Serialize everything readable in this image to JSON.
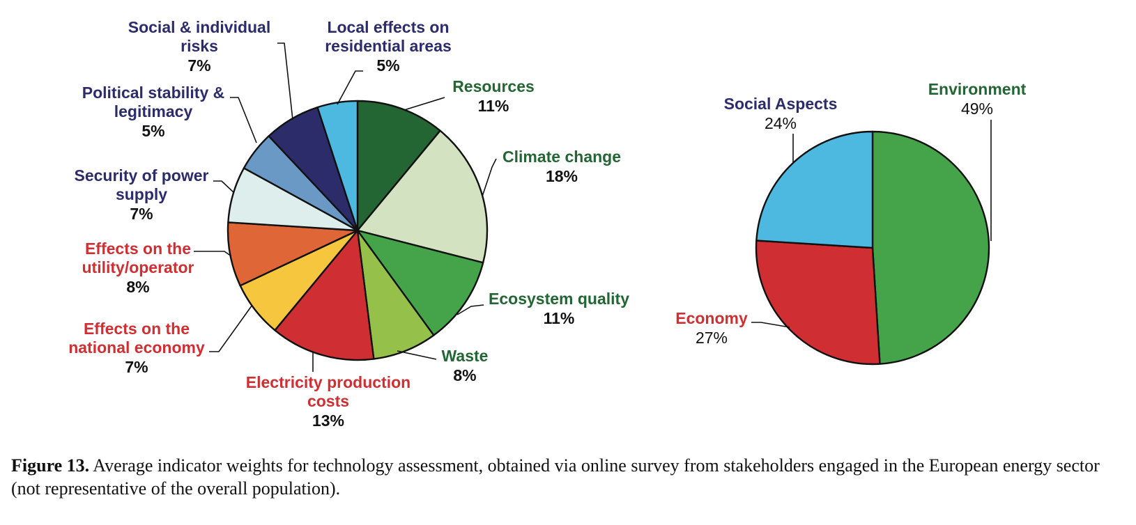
{
  "chart_data": [
    {
      "type": "pie",
      "title": "",
      "slices": [
        {
          "label": "Resources",
          "value": 11,
          "value_label": "11%",
          "color": "#236634",
          "label_color": "#236634"
        },
        {
          "label": "Climate change",
          "value": 18,
          "value_label": "18%",
          "color": "#d3e3c1",
          "label_color": "#236634"
        },
        {
          "label": "Ecosystem quality",
          "value": 11,
          "value_label": "11%",
          "color": "#45a449",
          "label_color": "#236634"
        },
        {
          "label": "Waste",
          "value": 8,
          "value_label": "8%",
          "color": "#95c049",
          "label_color": "#236634"
        },
        {
          "label": "Electricity production costs",
          "value": 13,
          "value_label": "13%",
          "color": "#cf2f33",
          "label_color": "#cf2f33"
        },
        {
          "label": "Effects on the national economy",
          "value": 7,
          "value_label": "7%",
          "color": "#f6c73e",
          "label_color": "#cf2f33"
        },
        {
          "label": "Effects on the utility/operator",
          "value": 8,
          "value_label": "8%",
          "color": "#df6637",
          "label_color": "#cf2f33"
        },
        {
          "label": "Security of power supply",
          "value": 7,
          "value_label": "7%",
          "color": "#ddeeec",
          "label_color": "#2d2c6b"
        },
        {
          "label": "Political stability & legitimacy",
          "value": 5,
          "value_label": "5%",
          "color": "#6b99c6",
          "label_color": "#2d2c6b"
        },
        {
          "label": "Social & individual risks",
          "value": 7,
          "value_label": "7%",
          "color": "#2d2c6b",
          "label_color": "#2d2c6b"
        },
        {
          "label": "Local effects on residential areas",
          "value": 5,
          "value_label": "5%",
          "color": "#4db8e0",
          "label_color": "#2d2c6b"
        }
      ],
      "label_lines": [
        [
          "Resources"
        ],
        [
          "Climate change"
        ],
        [
          "Ecosystem quality"
        ],
        [
          "Waste"
        ],
        [
          "Electricity production",
          "costs"
        ],
        [
          "Effects on the",
          "national economy"
        ],
        [
          "Effects on the",
          "utility/operator"
        ],
        [
          "Security of power",
          "supply"
        ],
        [
          "Political stability &",
          "legitimacy"
        ],
        [
          "Social & individual",
          "risks"
        ],
        [
          "Local effects on",
          "residential areas"
        ]
      ]
    },
    {
      "type": "pie",
      "title": "",
      "slices": [
        {
          "label": "Environment",
          "value": 49,
          "value_label": "49%",
          "color": "#45a449",
          "label_color": "#236634"
        },
        {
          "label": "Economy",
          "value": 27,
          "value_label": "27%",
          "color": "#cf2f33",
          "label_color": "#cf2f33"
        },
        {
          "label": "Social Aspects",
          "value": 24,
          "value_label": "24%",
          "color": "#4db8e0",
          "label_color": "#2d2c6b"
        }
      ]
    }
  ],
  "caption": {
    "label": "Figure 13.",
    "text": "Average indicator weights for technology assessment, obtained via online survey from stakeholders engaged in the European energy sector (not representative of the overall population)."
  }
}
